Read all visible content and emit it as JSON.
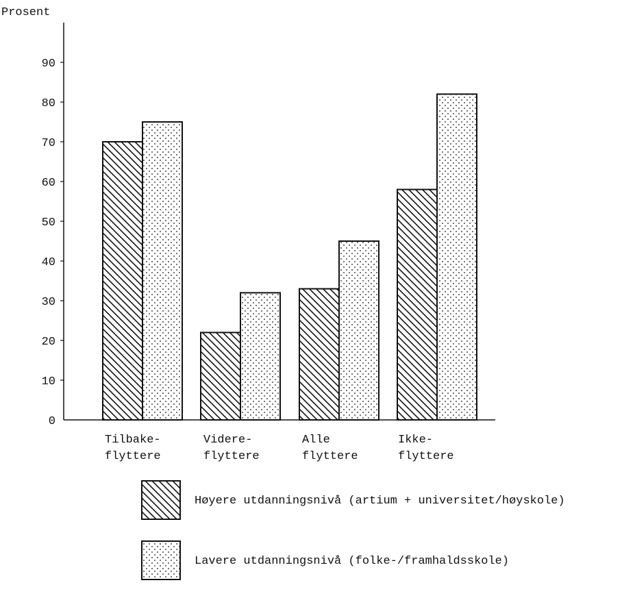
{
  "chart_data": {
    "type": "bar",
    "ylabel": "Prosent",
    "xlabel": "",
    "ylim": [
      0,
      100
    ],
    "yticks": [
      0,
      10,
      20,
      30,
      40,
      50,
      60,
      70,
      80,
      90
    ],
    "categories": [
      [
        "Tilbake-",
        "flyttere"
      ],
      [
        "Videre-",
        "flyttere"
      ],
      [
        "Alle",
        "flyttere"
      ],
      [
        "Ikke-",
        "flyttere"
      ]
    ],
    "series": [
      {
        "name": "Høyere utdanningsnivå (artium + universitet/høyskole)",
        "pattern": "hatch",
        "values": [
          70,
          22,
          33,
          58
        ]
      },
      {
        "name": "Lavere utdanningsnivå (folke-/framhaldsskole)",
        "pattern": "dots",
        "values": [
          75,
          32,
          45,
          82
        ]
      }
    ],
    "legend": "bottom",
    "grid": false,
    "colors": {
      "ink": "#111111",
      "background": "#ffffff"
    }
  }
}
